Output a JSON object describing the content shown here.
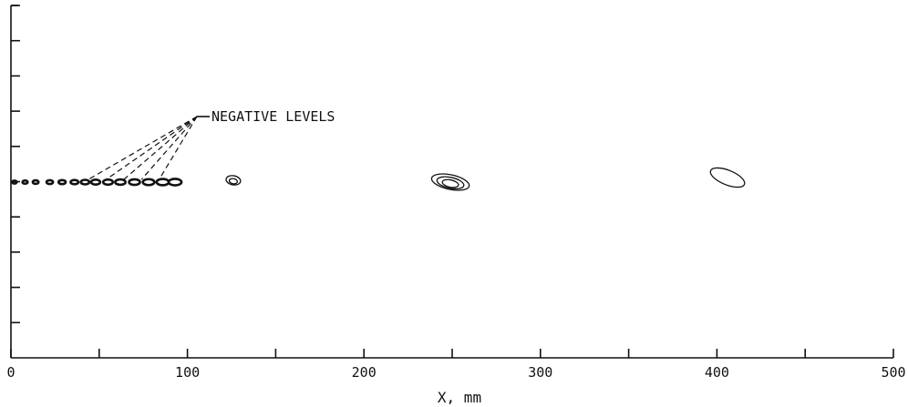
{
  "chart_data": {
    "type": "scatter",
    "xlabel": "X, mm",
    "ylabel": "",
    "xlim": [
      0,
      500
    ],
    "x_ticks": [
      0,
      100,
      200,
      300,
      400,
      500
    ],
    "x_minor_ticks": [
      50,
      150,
      250,
      350,
      450
    ],
    "y_tick_count": 11,
    "grid": false,
    "annotation": "NEGATIVE LEVELS",
    "negative_level_contours": [
      {
        "x": 2
      },
      {
        "x": 8
      },
      {
        "x": 14
      },
      {
        "x": 22
      },
      {
        "x": 29
      },
      {
        "x": 36
      },
      {
        "x": 42
      },
      {
        "x": 48
      },
      {
        "x": 55
      },
      {
        "x": 62
      },
      {
        "x": 70
      },
      {
        "x": 78
      },
      {
        "x": 86
      },
      {
        "x": 93
      }
    ],
    "negative_level_arrow_targets": [
      44,
      54,
      64,
      74,
      84
    ],
    "positive_contours": [
      {
        "x": 126,
        "levels": 2
      },
      {
        "x": 249,
        "levels": 3
      },
      {
        "x": 406,
        "levels": 1
      }
    ]
  }
}
